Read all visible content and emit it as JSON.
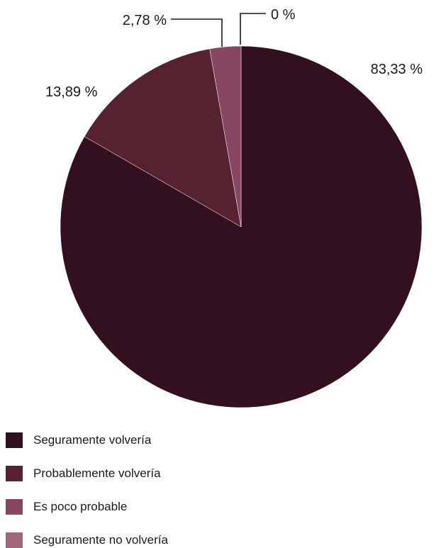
{
  "chart_data": {
    "type": "pie",
    "start_angle_deg": 0,
    "direction": "clockwise",
    "series": [
      {
        "name": "Seguramente volvería",
        "value": 83.33,
        "label": "83,33 %",
        "color": "#331020"
      },
      {
        "name": "Probablemente volvería",
        "value": 13.89,
        "label": "13,89 %",
        "color": "#56222f"
      },
      {
        "name": "Es poco probable",
        "value": 2.78,
        "label": "2,78 %",
        "color": "#874760"
      },
      {
        "name": "Seguramente no volvería",
        "value": 0,
        "label": "0 %",
        "color": "#a0677d"
      }
    ],
    "legend_position": "bottom-left"
  }
}
